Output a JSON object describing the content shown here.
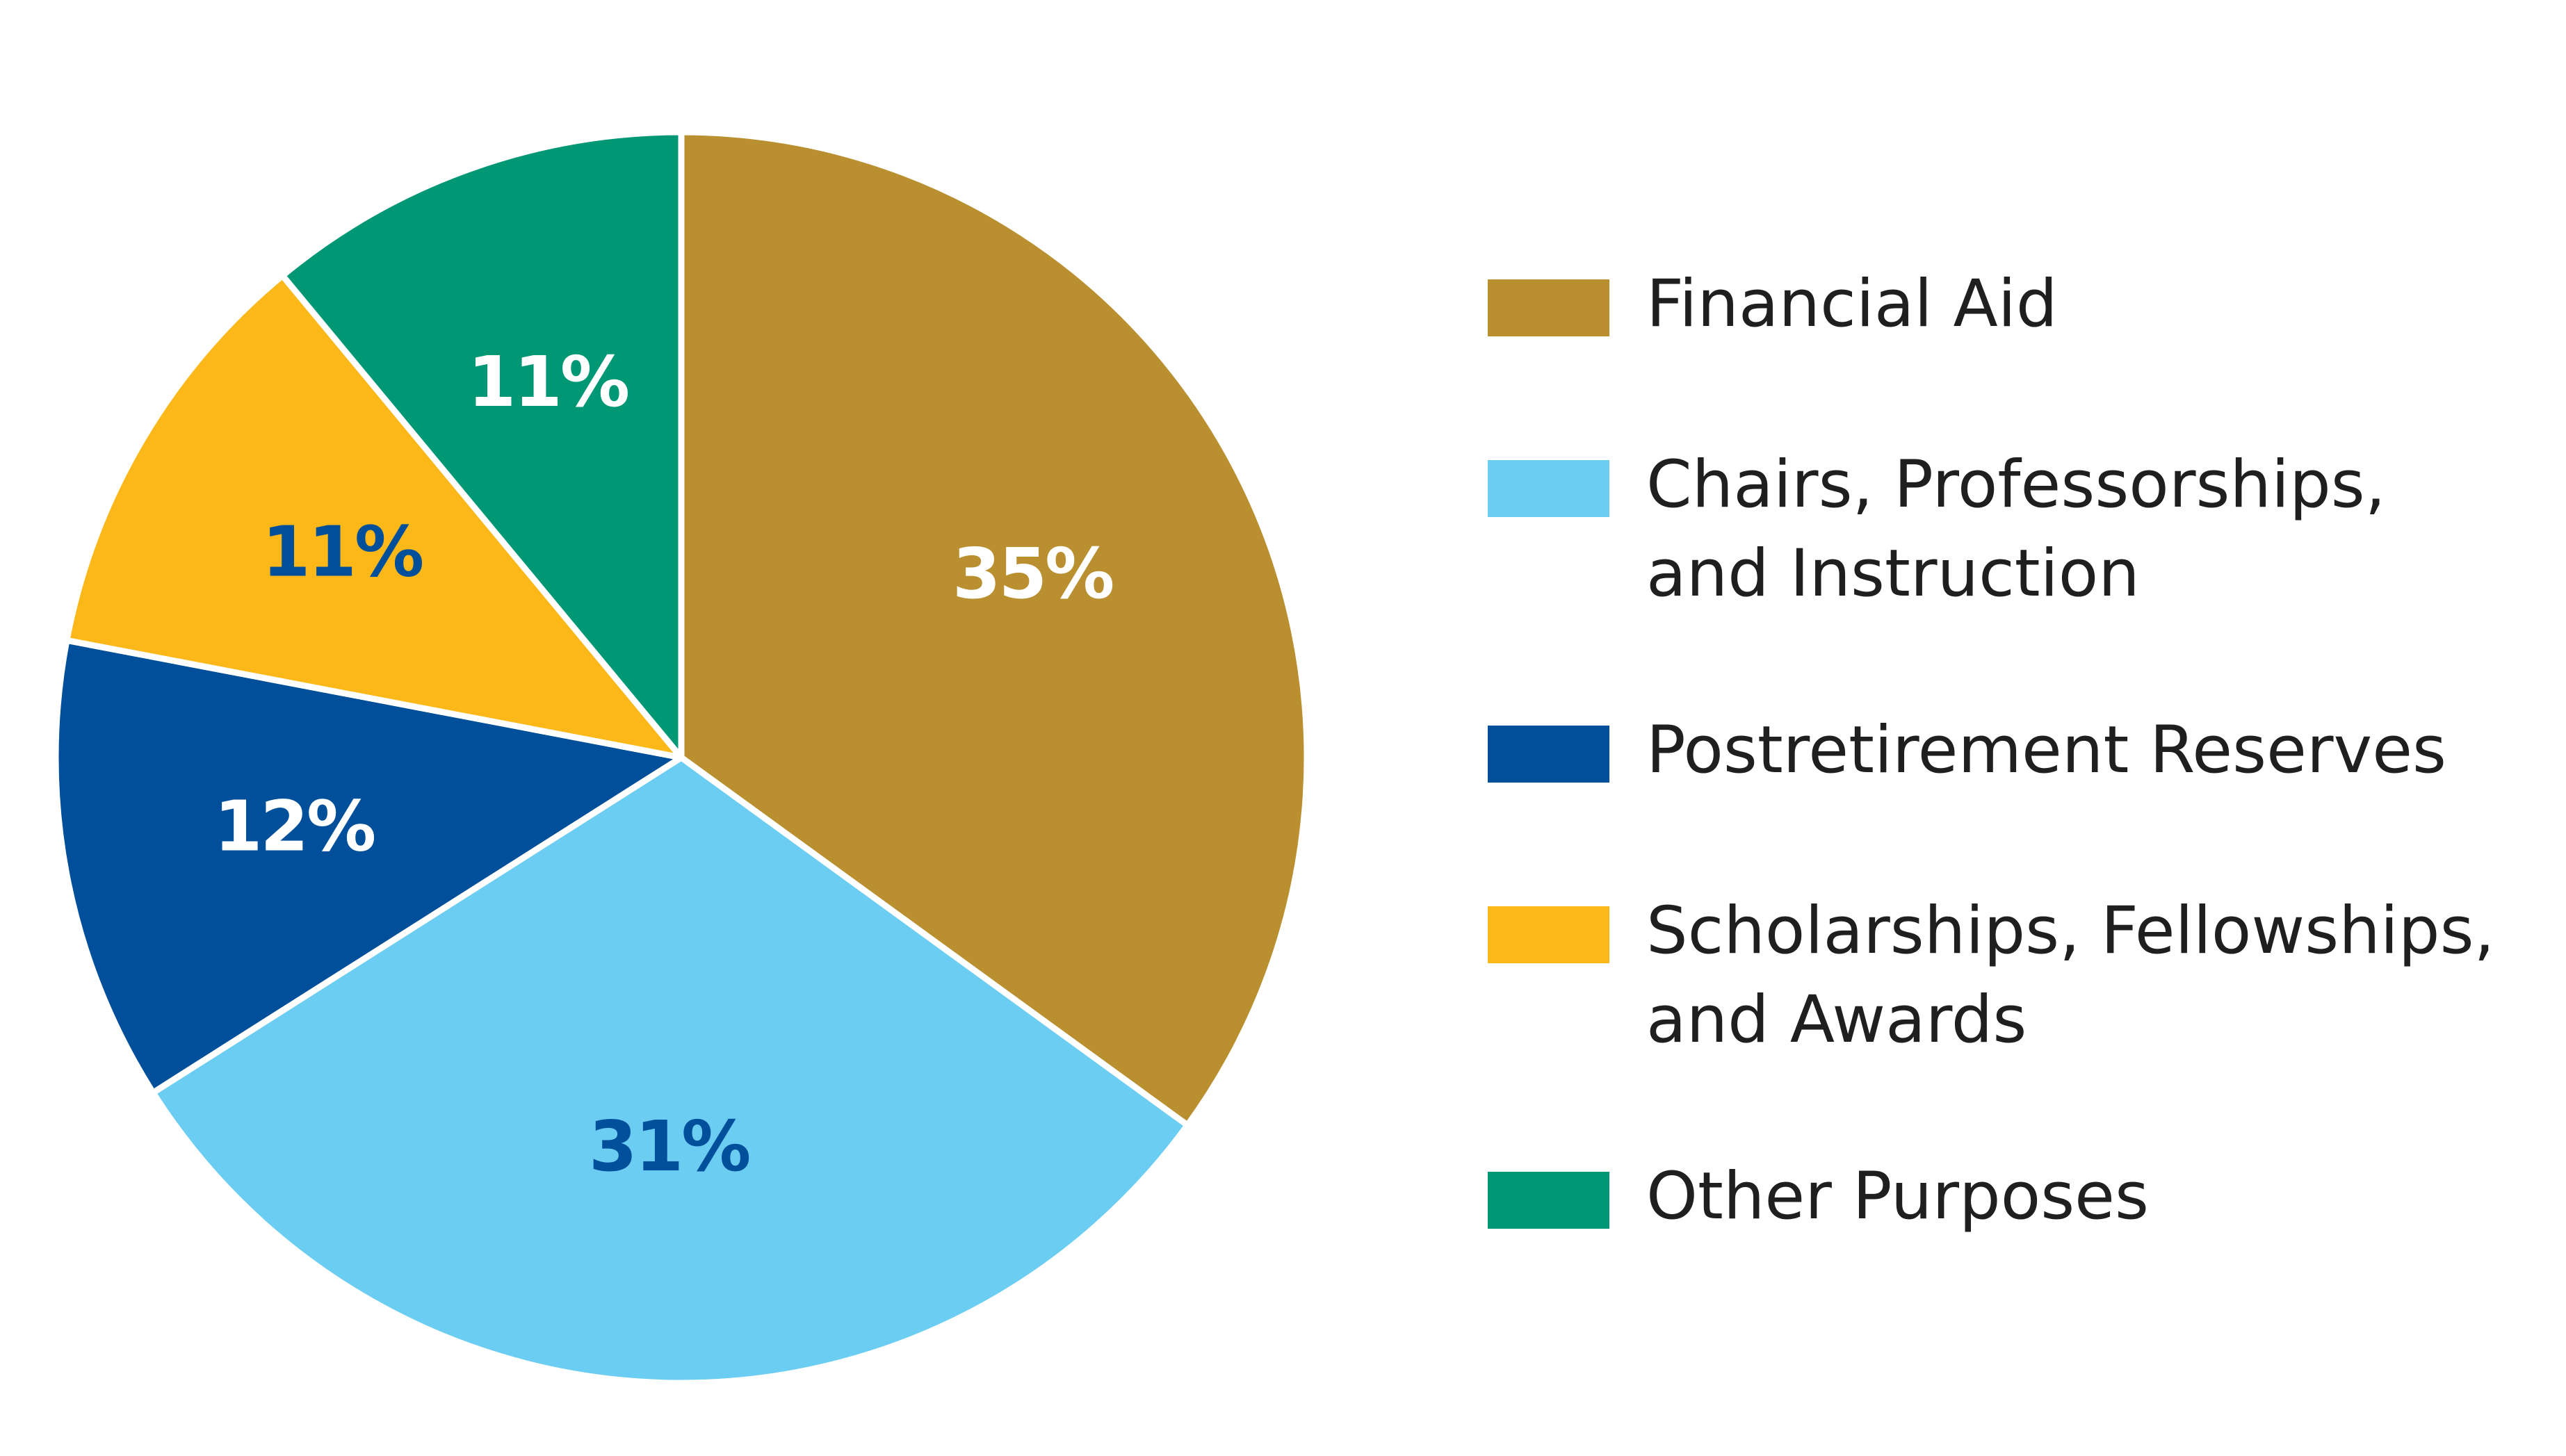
{
  "chart_data": {
    "type": "pie",
    "categories": [
      "Financial Aid",
      "Chairs, Professorships, and Instruction",
      "Postretirement Reserves",
      "Scholarships, Fellowships, and Awards",
      "Other Purposes"
    ],
    "values": [
      35,
      31,
      12,
      11,
      11
    ],
    "value_labels": [
      "35%",
      "31%",
      "12%",
      "11%",
      "11%"
    ],
    "colors": [
      "#B98F2F",
      "#6BCDF2",
      "#004F9B",
      "#FCB718",
      "#009775"
    ],
    "label_colors": [
      "#FFFFFF",
      "#004F9B",
      "#FFFFFF",
      "#004F9B",
      "#FFFFFF"
    ],
    "legend": {
      "placement": "right",
      "items": [
        {
          "lines": [
            "Financial Aid"
          ],
          "color": "#B98F2F"
        },
        {
          "lines": [
            "Chairs, Professorships,",
            "and Instruction"
          ],
          "color": "#6BCDF2"
        },
        {
          "lines": [
            "Postretirement Reserves"
          ],
          "color": "#004F9B"
        },
        {
          "lines": [
            "Scholarships, Fellowships,",
            "and Awards"
          ],
          "color": "#FCB718"
        },
        {
          "lines": [
            "Other Purposes"
          ],
          "color": "#009775"
        }
      ]
    }
  }
}
